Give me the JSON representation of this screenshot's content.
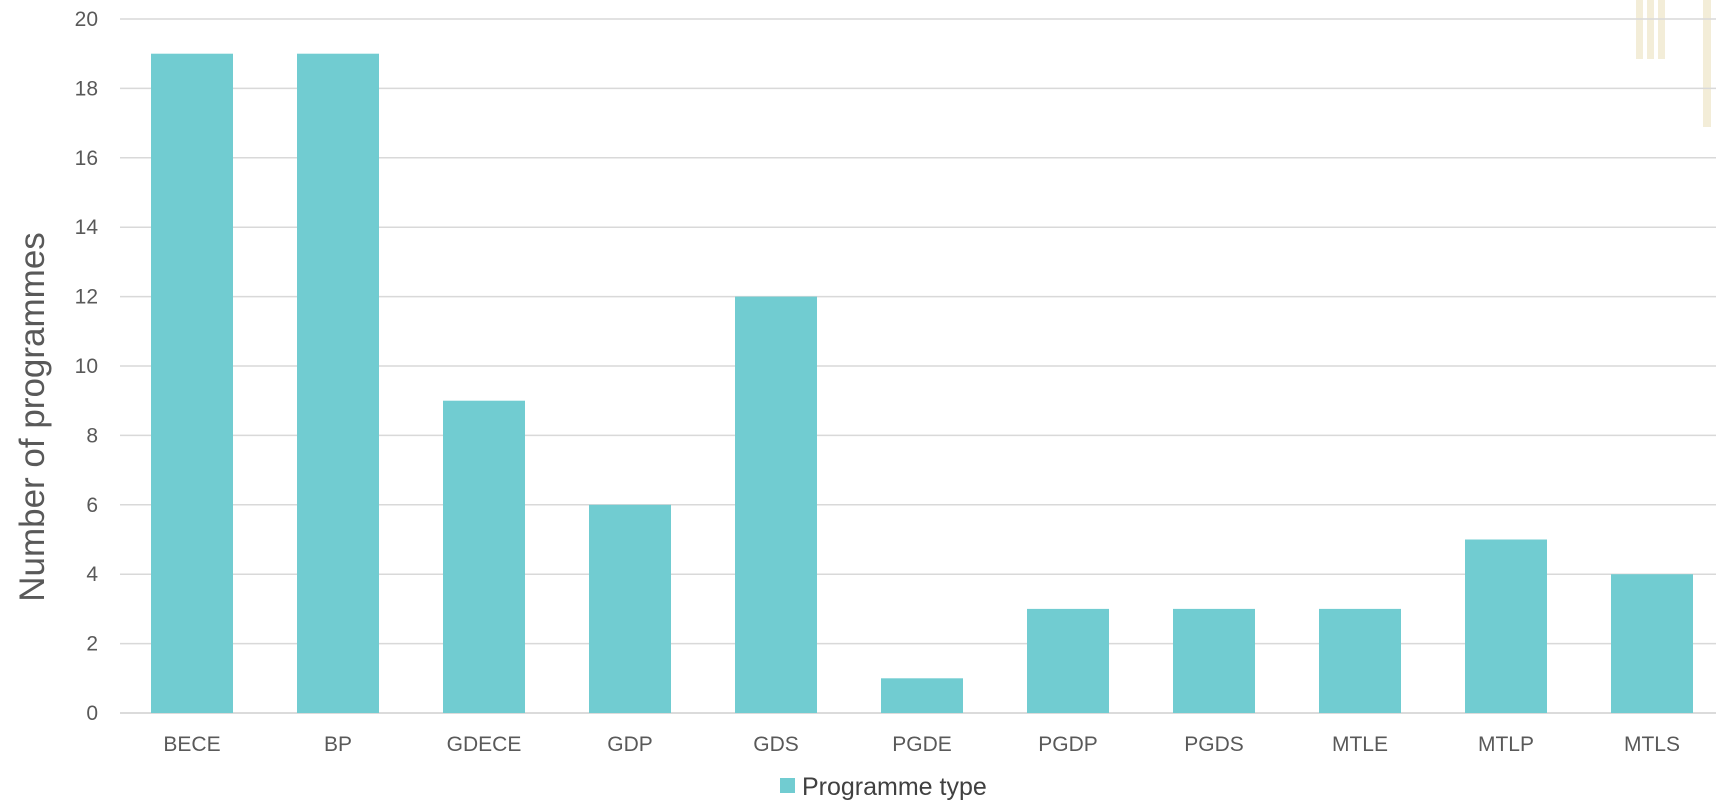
{
  "chart_data": {
    "type": "bar",
    "categories": [
      "BECE",
      "BP",
      "GDECE",
      "GDP",
      "GDS",
      "PGDE",
      "PGDP",
      "PGDS",
      "MTLE",
      "MTLP",
      "MTLS"
    ],
    "series": [
      {
        "name": "Programme type",
        "values": [
          19,
          19,
          9,
          6,
          12,
          1,
          3,
          3,
          3,
          5,
          4
        ],
        "color": "#71ccd1"
      }
    ],
    "title": "",
    "xlabel": "",
    "ylabel": "Number of programmes",
    "ylim": [
      0,
      20
    ],
    "yticks": [
      0,
      2,
      4,
      6,
      8,
      10,
      12,
      14,
      16,
      18,
      20
    ],
    "grid": true,
    "legend_position": "bottom"
  }
}
